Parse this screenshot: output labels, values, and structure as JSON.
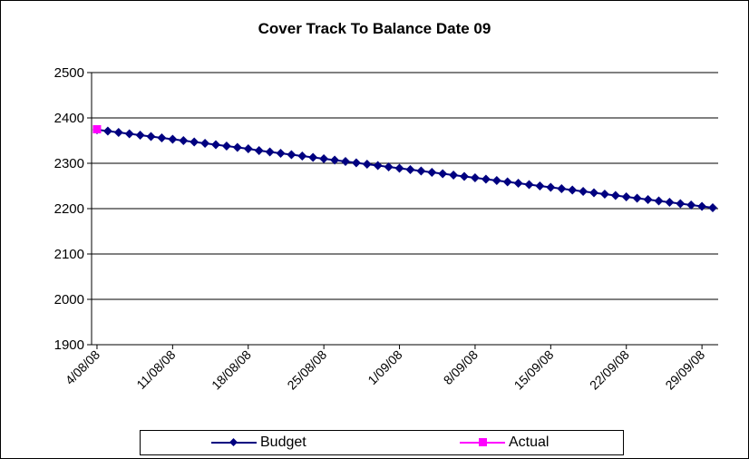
{
  "chart_data": {
    "type": "line",
    "title": "Cover Track To Balance Date 09",
    "xlabel": "",
    "ylabel": "",
    "ylim": [
      1900,
      2500
    ],
    "yticks": [
      "1900",
      "2000",
      "2100",
      "2200",
      "2300",
      "2400",
      "2500"
    ],
    "x_range": [
      "4/08/08",
      "30/09/08"
    ],
    "xticks": [
      "4/08/08",
      "11/08/08",
      "18/08/08",
      "25/08/08",
      "1/09/08",
      "8/09/08",
      "15/09/08",
      "22/09/08",
      "29/09/08"
    ],
    "grid": "horizontal",
    "legend_position": "bottom",
    "series": [
      {
        "name": "Budget",
        "color": "#000080",
        "marker": "diamond",
        "start_date": "4/08/08",
        "step_days": 1,
        "values": [
          2374,
          2371,
          2368,
          2365,
          2362,
          2359,
          2356,
          2353,
          2350,
          2347,
          2344,
          2341,
          2338,
          2335,
          2332,
          2328,
          2325,
          2322,
          2319,
          2316,
          2313,
          2310,
          2307,
          2304,
          2301,
          2298,
          2295,
          2292,
          2289,
          2286,
          2283,
          2280,
          2277,
          2274,
          2271,
          2268,
          2265,
          2262,
          2259,
          2256,
          2253,
          2250,
          2247,
          2244,
          2241,
          2238,
          2235,
          2232,
          2229,
          2226,
          2223,
          2220,
          2217,
          2214,
          2211,
          2208,
          2205,
          2202
        ]
      },
      {
        "name": "Actual",
        "color": "#ff00ff",
        "marker": "square",
        "points": [
          {
            "x": "4/08/08",
            "y": 2375
          }
        ]
      }
    ]
  }
}
